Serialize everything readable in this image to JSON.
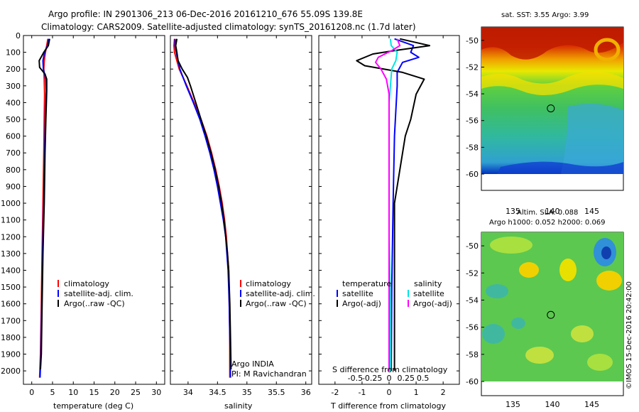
{
  "header": {
    "line1": "Argo profile: IN 2901306_213 06-Dec-2016 20161210_676 55.09S 139.8E",
    "line2": "Climatology: CARS2009. Satellite-adjusted climatology: synTS_20161208.nc (1.7d later)"
  },
  "watermark": "©IMOS 15-Dec-2016 20:42:00",
  "colors": {
    "climatology": "#ff0000",
    "satellite": "#0000ff",
    "argo": "#000000",
    "argo_salinity_diff": "#ff00ff",
    "satellite_salinity_diff": "#00e5e5"
  },
  "chart_data": [
    {
      "id": "temperature",
      "type": "line",
      "xlabel": "temperature (deg C)",
      "ylabel": "",
      "xlim": [
        -2,
        32
      ],
      "ylim": [
        2080,
        0
      ],
      "xticks": [
        0,
        5,
        10,
        15,
        20,
        25,
        30
      ],
      "yticks": [
        0,
        100,
        200,
        300,
        400,
        500,
        600,
        700,
        800,
        900,
        1000,
        1100,
        1200,
        1300,
        1400,
        1500,
        1600,
        1700,
        1800,
        1900,
        2000
      ],
      "legend": [
        "climatology",
        "satellite-adj. clim.",
        "Argo(..raw -QC)"
      ],
      "series": [
        {
          "name": "climatology",
          "color": "#ff0000",
          "points": [
            [
              3.9,
              20
            ],
            [
              3.6,
              60
            ],
            [
              3.3,
              100
            ],
            [
              3.0,
              150
            ],
            [
              2.9,
              200
            ],
            [
              3.0,
              260
            ],
            [
              3.1,
              350
            ],
            [
              3.0,
              500
            ],
            [
              2.9,
              700
            ],
            [
              2.7,
              1000
            ],
            [
              2.5,
              1300
            ],
            [
              2.3,
              1600
            ],
            [
              2.1,
              1900
            ],
            [
              1.9,
              2040
            ]
          ]
        },
        {
          "name": "satellite-adj. clim.",
          "color": "#0000ff",
          "points": [
            [
              4.1,
              20
            ],
            [
              3.8,
              60
            ],
            [
              3.1,
              100
            ],
            [
              2.7,
              150
            ],
            [
              2.8,
              200
            ],
            [
              3.4,
              260
            ],
            [
              3.5,
              330
            ],
            [
              3.3,
              500
            ],
            [
              3.1,
              700
            ],
            [
              2.9,
              1000
            ],
            [
              2.6,
              1300
            ],
            [
              2.4,
              1600
            ],
            [
              2.2,
              1900
            ],
            [
              2.0,
              2040
            ]
          ]
        },
        {
          "name": "Argo(..raw -QC)",
          "color": "#000000",
          "points": [
            [
              4.3,
              20
            ],
            [
              4.0,
              60
            ],
            [
              2.9,
              100
            ],
            [
              1.8,
              150
            ],
            [
              1.9,
              190
            ],
            [
              3.2,
              230
            ],
            [
              3.6,
              260
            ],
            [
              3.6,
              330
            ],
            [
              3.4,
              500
            ],
            [
              3.2,
              700
            ],
            [
              3.0,
              1000
            ],
            [
              2.7,
              1300
            ],
            [
              2.5,
              1600
            ],
            [
              2.3,
              1900
            ],
            [
              2.1,
              1990
            ]
          ]
        }
      ]
    },
    {
      "id": "salinity",
      "type": "line",
      "xlabel": "salinity",
      "ylabel": "",
      "xlim": [
        33.7,
        36.1
      ],
      "ylim": [
        2080,
        0
      ],
      "xticks": [
        34,
        34.5,
        35,
        35.5,
        36
      ],
      "legend": [
        "climatology",
        "satellite-adj. clim.",
        "Argo(..raw -QC)"
      ],
      "annotation": [
        "Argo INDIA",
        "PI: M Ravichandran"
      ],
      "series": [
        {
          "name": "climatology",
          "color": "#ff0000",
          "points": [
            [
              33.77,
              20
            ],
            [
              33.76,
              60
            ],
            [
              33.77,
              100
            ],
            [
              33.85,
              200
            ],
            [
              33.98,
              300
            ],
            [
              34.1,
              400
            ],
            [
              34.22,
              500
            ],
            [
              34.32,
              600
            ],
            [
              34.4,
              700
            ],
            [
              34.47,
              800
            ],
            [
              34.53,
              900
            ],
            [
              34.58,
              1000
            ],
            [
              34.62,
              1100
            ],
            [
              34.65,
              1200
            ],
            [
              34.67,
              1300
            ],
            [
              34.69,
              1400
            ],
            [
              34.7,
              1600
            ],
            [
              34.71,
              1800
            ],
            [
              34.71,
              2040
            ]
          ]
        },
        {
          "name": "satellite-adj. clim.",
          "color": "#0000ff",
          "points": [
            [
              33.78,
              20
            ],
            [
              33.78,
              60
            ],
            [
              33.8,
              100
            ],
            [
              33.86,
              200
            ],
            [
              33.97,
              300
            ],
            [
              34.09,
              400
            ],
            [
              34.2,
              500
            ],
            [
              34.29,
              600
            ],
            [
              34.37,
              700
            ],
            [
              34.44,
              800
            ],
            [
              34.5,
              900
            ],
            [
              34.55,
              1000
            ],
            [
              34.6,
              1100
            ],
            [
              34.64,
              1200
            ],
            [
              34.66,
              1300
            ],
            [
              34.68,
              1400
            ],
            [
              34.7,
              1600
            ],
            [
              34.71,
              1800
            ],
            [
              34.72,
              2040
            ]
          ]
        },
        {
          "name": "Argo(..raw -QC)",
          "color": "#000000",
          "points": [
            [
              33.81,
              20
            ],
            [
              33.79,
              60
            ],
            [
              33.81,
              100
            ],
            [
              33.83,
              150
            ],
            [
              33.9,
              200
            ],
            [
              33.99,
              250
            ],
            [
              34.04,
              300
            ],
            [
              34.13,
              400
            ],
            [
              34.22,
              500
            ],
            [
              34.31,
              600
            ],
            [
              34.39,
              700
            ],
            [
              34.46,
              800
            ],
            [
              34.52,
              900
            ],
            [
              34.57,
              1000
            ],
            [
              34.61,
              1100
            ],
            [
              34.64,
              1200
            ],
            [
              34.67,
              1300
            ],
            [
              34.69,
              1400
            ],
            [
              34.7,
              1500
            ],
            [
              34.71,
              1600
            ],
            [
              34.72,
              1800
            ],
            [
              34.73,
              1990
            ]
          ]
        }
      ]
    },
    {
      "id": "difference",
      "type": "line",
      "xlabel": "T difference from climatology",
      "x2label": "S difference from climatology",
      "xlim": [
        -2.6,
        2.6
      ],
      "ylim": [
        2080,
        0
      ],
      "xticks": [
        -2,
        -1,
        0,
        1,
        2
      ],
      "x2ticks": [
        "-0.5",
        "-0.25",
        "0",
        "0.25",
        "0.5"
      ],
      "legend_titles": [
        "temperature",
        "salinity"
      ],
      "legend": [
        "satellite",
        "Argo(-adj)",
        "satellite",
        "Argo(-adj)"
      ],
      "series": [
        {
          "name": "T satellite",
          "color": "#0000ff",
          "points": [
            [
              0.2,
              20
            ],
            [
              0.9,
              60
            ],
            [
              0.8,
              100
            ],
            [
              1.1,
              130
            ],
            [
              0.5,
              160
            ],
            [
              0.3,
              220
            ],
            [
              0.3,
              300
            ],
            [
              0.2,
              600
            ],
            [
              0.15,
              1000
            ],
            [
              0.1,
              1500
            ],
            [
              0.08,
              2000
            ]
          ]
        },
        {
          "name": "T Argo(-adj)",
          "color": "#000000",
          "points": [
            [
              0.4,
              20
            ],
            [
              1.5,
              60
            ],
            [
              0.2,
              90
            ],
            [
              -0.6,
              110
            ],
            [
              -1.2,
              150
            ],
            [
              -0.9,
              180
            ],
            [
              0.5,
              220
            ],
            [
              1.3,
              260
            ],
            [
              1.0,
              350
            ],
            [
              0.8,
              500
            ],
            [
              0.6,
              600
            ],
            [
              0.4,
              800
            ],
            [
              0.2,
              1000
            ],
            [
              0.2,
              1500
            ],
            [
              0.2,
              2000
            ]
          ]
        },
        {
          "name": "S satellite",
          "color": "#00e5e5",
          "points": [
            [
              0.05,
              20
            ],
            [
              0.08,
              60
            ],
            [
              0.3,
              100
            ],
            [
              0.25,
              150
            ],
            [
              0.1,
              200
            ],
            [
              0.0,
              400
            ],
            [
              0.0,
              800
            ],
            [
              0.0,
              1200
            ],
            [
              0.05,
              1600
            ],
            [
              0.05,
              2000
            ]
          ]
        },
        {
          "name": "S Argo(-adj)",
          "color": "#ff00ff",
          "points": [
            [
              0.3,
              20
            ],
            [
              0.4,
              60
            ],
            [
              0.1,
              90
            ],
            [
              -0.4,
              130
            ],
            [
              -0.5,
              160
            ],
            [
              -0.3,
              200
            ],
            [
              -0.1,
              260
            ],
            [
              0.0,
              350
            ],
            [
              0.0,
              600
            ],
            [
              0.0,
              900
            ],
            [
              0.0,
              1200
            ],
            [
              0.0,
              1500
            ],
            [
              0.0,
              2000
            ]
          ]
        }
      ]
    },
    {
      "id": "sst_map",
      "type": "heatmap",
      "title": "sat. SST: 3.55 Argo: 3.99",
      "xlim": [
        131,
        149
      ],
      "ylim": [
        -60,
        -49
      ],
      "xticks": [
        135,
        140,
        145
      ],
      "yticks": [
        -50,
        -52,
        -54,
        -56,
        -58,
        -60
      ],
      "marker": [
        139.8,
        -55.09
      ]
    },
    {
      "id": "sla_map",
      "type": "heatmap",
      "title": [
        "Altim. SLA: 0.088",
        "Argo h1000: 0.052 h2000: 0.069"
      ],
      "xlim": [
        131,
        149
      ],
      "ylim": [
        -60,
        -49
      ],
      "xticks": [
        135,
        140,
        145
      ],
      "yticks": [
        -50,
        -52,
        -54,
        -56,
        -58,
        -60
      ],
      "marker": [
        139.8,
        -55.09
      ]
    }
  ]
}
